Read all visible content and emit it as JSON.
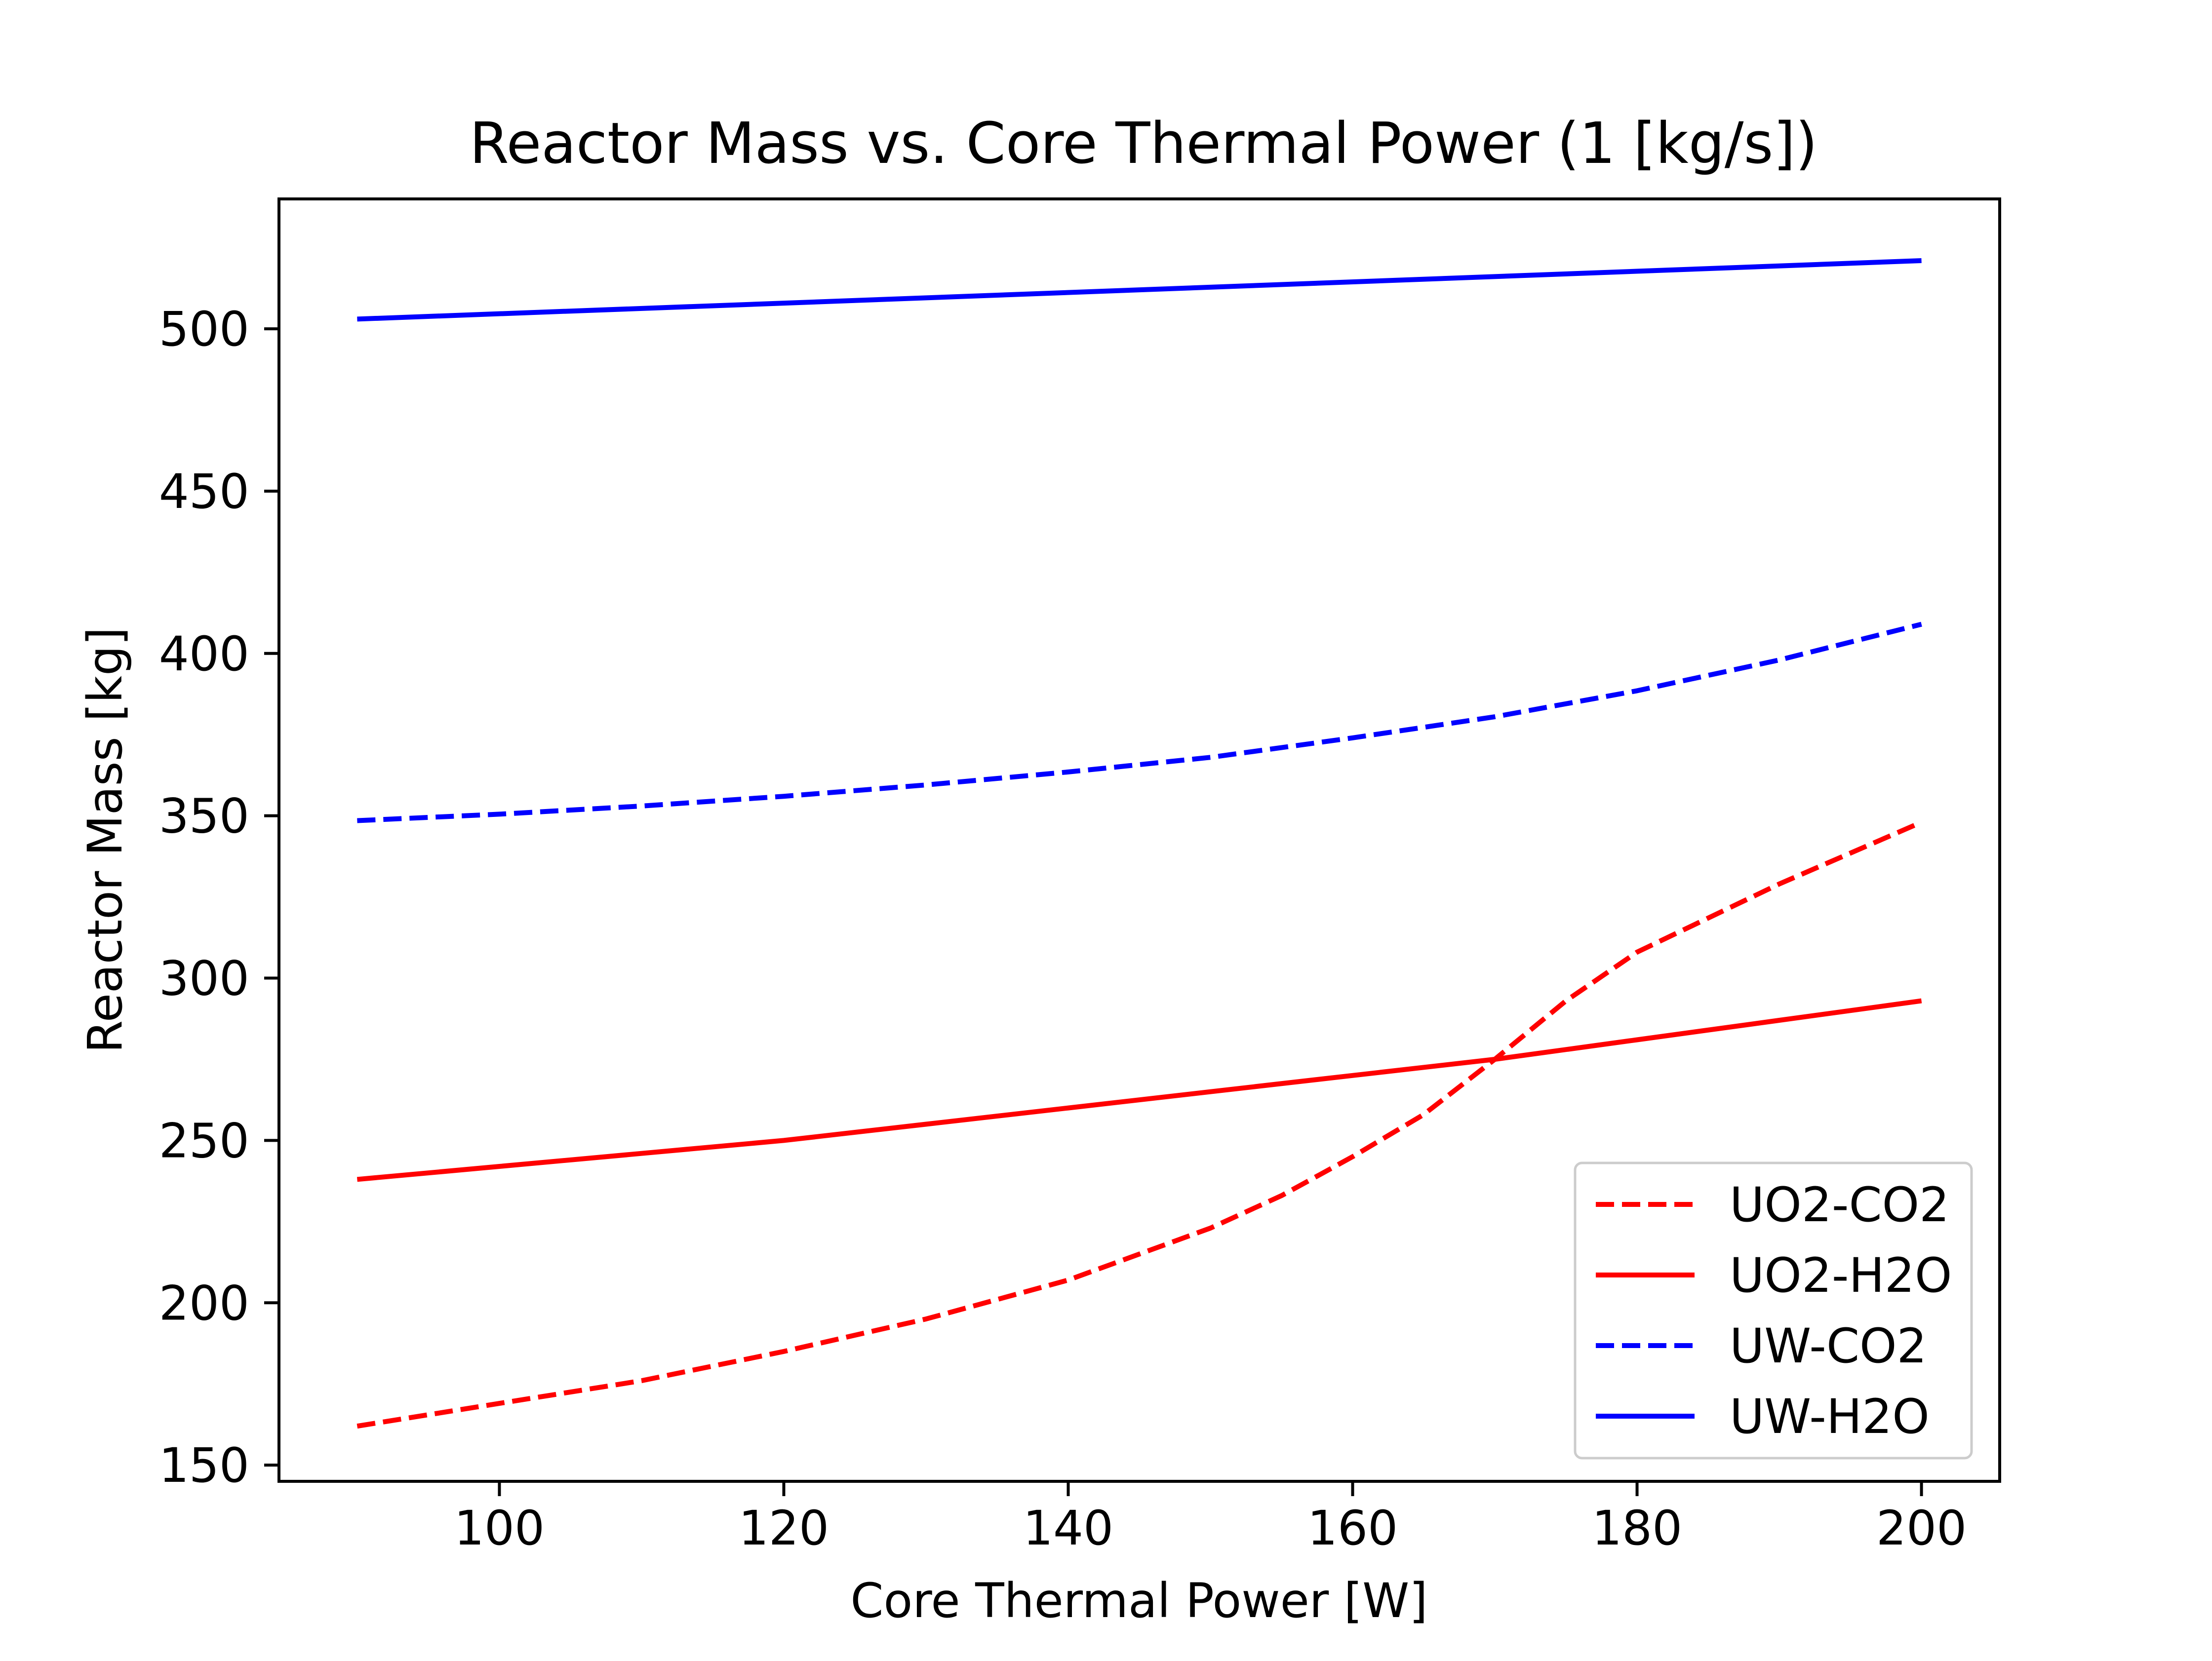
{
  "chart_data": {
    "type": "line",
    "title": "Reactor Mass vs. Core Thermal Power (1 [kg/s])",
    "xlabel": "Core Thermal Power [W]",
    "ylabel": "Reactor Mass [kg]",
    "xlim": [
      84.5,
      205.5
    ],
    "ylim": [
      145,
      540
    ],
    "xticks": [
      100,
      120,
      140,
      160,
      180,
      200
    ],
    "yticks": [
      150,
      200,
      250,
      300,
      350,
      400,
      450,
      500
    ],
    "grid": false,
    "legend_position": "lower right",
    "series": [
      {
        "name": "UO2-CO2",
        "color": "#ff0000",
        "dash": "dashed",
        "x": [
          90,
          100,
          110,
          120,
          130,
          140,
          150,
          155,
          160,
          165,
          170,
          175,
          180,
          190,
          200
        ],
        "y": [
          162,
          169,
          176,
          185,
          195,
          207,
          223,
          233,
          245,
          258,
          275,
          293,
          308,
          329,
          348
        ]
      },
      {
        "name": "UO2-H2O",
        "color": "#ff0000",
        "dash": "solid",
        "x": [
          90,
          100,
          110,
          120,
          130,
          140,
          150,
          160,
          170,
          180,
          190,
          200
        ],
        "y": [
          238,
          242,
          246,
          250,
          255,
          260,
          265,
          270,
          275,
          281,
          287,
          293
        ]
      },
      {
        "name": "UW-CO2",
        "color": "#0000ff",
        "dash": "dashed",
        "x": [
          90,
          100,
          110,
          120,
          130,
          140,
          150,
          160,
          170,
          180,
          190,
          200
        ],
        "y": [
          348.5,
          350.5,
          353,
          356,
          359.5,
          363.5,
          368,
          374,
          380.5,
          388.5,
          398,
          409
        ]
      },
      {
        "name": "UW-H2O",
        "color": "#0000ff",
        "dash": "solid",
        "x": [
          90,
          200
        ],
        "y": [
          503,
          521
        ]
      }
    ]
  }
}
